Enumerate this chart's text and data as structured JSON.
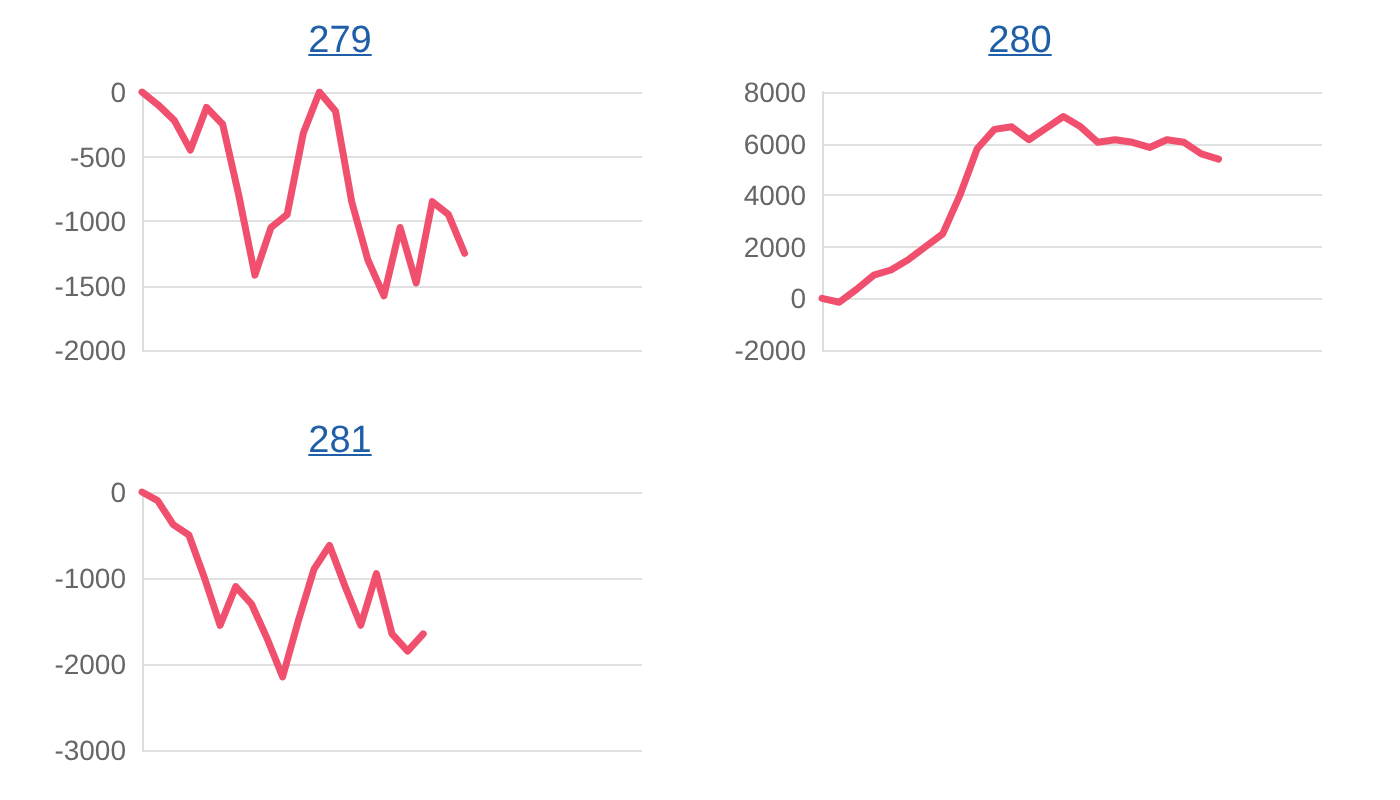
{
  "chart_data": [
    {
      "type": "line",
      "title": "279",
      "categories": [
        null,
        null,
        null,
        null,
        null,
        null,
        null,
        null,
        null,
        null,
        null,
        null,
        null,
        null,
        null,
        null,
        null,
        null,
        null,
        null,
        null,
        null,
        null,
        null,
        null,
        null,
        null,
        null,
        null,
        null,
        null,
        null
      ],
      "series": [
        {
          "color": "#f0506e",
          "values": [
            0,
            -100,
            -220,
            -450,
            -120,
            -250,
            -800,
            -1420,
            -1050,
            -950,
            -320,
            0,
            -150,
            -850,
            -1300,
            -1580,
            -1050,
            -1480,
            -850,
            -950,
            -1250,
            null,
            null,
            null,
            null,
            null,
            null,
            null,
            null,
            null,
            null,
            null
          ]
        }
      ],
      "ylim": [
        -2000,
        0
      ],
      "yticks": [
        -2000,
        -1500,
        -1000,
        -500,
        0
      ],
      "grid": "y",
      "marker": "none",
      "line_style": "solid"
    },
    {
      "type": "line",
      "title": "280",
      "categories": [
        null,
        null,
        null,
        null,
        null,
        null,
        null,
        null,
        null,
        null,
        null,
        null,
        null,
        null,
        null,
        null,
        null,
        null,
        null,
        null,
        null,
        null,
        null,
        null,
        null,
        null,
        null,
        null,
        null,
        null
      ],
      "series": [
        {
          "color": "#f0506e",
          "values": [
            0,
            -150,
            350,
            900,
            1100,
            1500,
            2000,
            2500,
            4000,
            5800,
            6550,
            6650,
            6150,
            6600,
            7050,
            6650,
            6050,
            6150,
            6050,
            5850,
            6150,
            6050,
            5600,
            5400,
            null,
            null,
            null,
            null,
            null,
            null
          ]
        }
      ],
      "ylim": [
        -2000,
        8000
      ],
      "yticks": [
        -2000,
        0,
        2000,
        4000,
        6000,
        8000
      ],
      "grid": "y",
      "marker": "none",
      "line_style": "solid"
    },
    {
      "type": "line",
      "title": "281",
      "categories": [
        null,
        null,
        null,
        null,
        null,
        null,
        null,
        null,
        null,
        null,
        null,
        null,
        null,
        null,
        null,
        null,
        null,
        null,
        null,
        null,
        null,
        null,
        null,
        null,
        null,
        null,
        null,
        null,
        null,
        null,
        null,
        null,
        null
      ],
      "series": [
        {
          "color": "#f0506e",
          "values": [
            0,
            -100,
            -380,
            -500,
            -1000,
            -1550,
            -1100,
            -1300,
            -1700,
            -2150,
            -1500,
            -900,
            -620,
            -1100,
            -1550,
            -950,
            -1650,
            -1850,
            -1650,
            null,
            null,
            null,
            null,
            null,
            null,
            null,
            null,
            null,
            null,
            null,
            null,
            null,
            null
          ]
        }
      ],
      "ylim": [
        -3000,
        0
      ],
      "yticks": [
        -3000,
        -2000,
        -1000,
        0
      ],
      "grid": "y",
      "marker": "none",
      "line_style": "solid"
    }
  ]
}
